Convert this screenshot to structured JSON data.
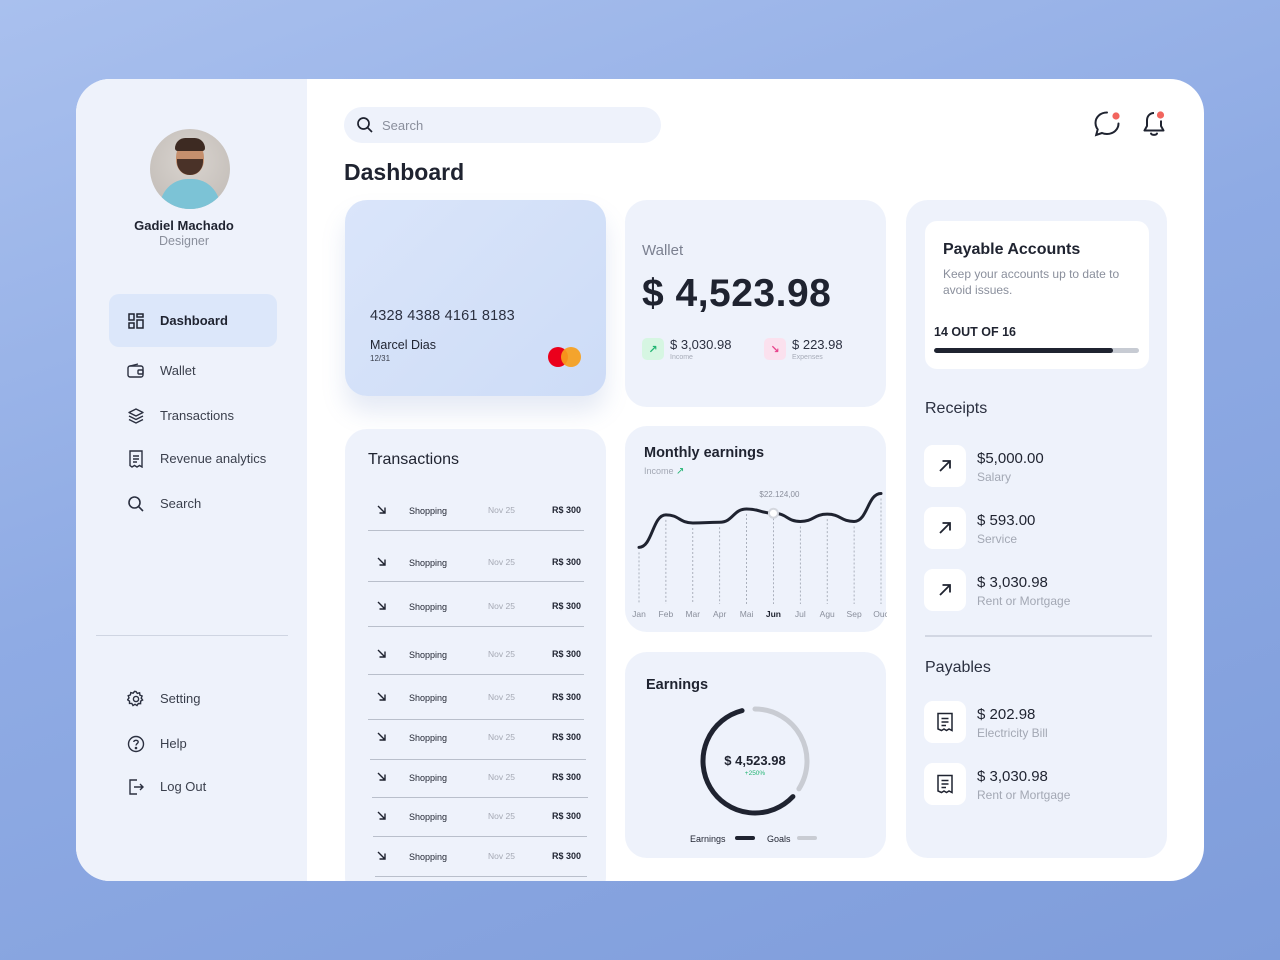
{
  "user": {
    "name": "Gadiel Machado",
    "role": "Designer"
  },
  "nav": {
    "items": [
      {
        "label": "Dashboard",
        "icon": "grid-icon",
        "active": true
      },
      {
        "label": "Wallet",
        "icon": "wallet-icon"
      },
      {
        "label": "Transactions",
        "icon": "layers-icon"
      },
      {
        "label": "Revenue analytics",
        "icon": "receipt-icon"
      },
      {
        "label": "Search",
        "icon": "search-icon"
      }
    ],
    "bottom": [
      {
        "label": "Setting",
        "icon": "gear-icon"
      },
      {
        "label": "Help",
        "icon": "help-icon"
      },
      {
        "label": "Log Out",
        "icon": "logout-icon"
      }
    ]
  },
  "search": {
    "placeholder": "Search"
  },
  "header": {
    "title": "Dashboard",
    "message_icon": "chat-icon",
    "notification_icon": "bell-icon",
    "badge_color": "#f2655e"
  },
  "card": {
    "number": "4328 4388 4161 8183",
    "holder": "Marcel Dias",
    "expiry": "12/31",
    "brand_icon": "mastercard-logo"
  },
  "wallet": {
    "label": "Wallet",
    "amount": "$ 4,523.98",
    "income": {
      "amount": "$ 3,030.98",
      "label": "Income"
    },
    "expenses": {
      "amount": "$ 223.98",
      "label": "Expenses"
    }
  },
  "payable_accounts": {
    "title": "Payable Accounts",
    "description": "Keep your accounts up to date to avoid issues.",
    "count_text": "14 OUT OF 16",
    "progress": 0.875
  },
  "receipts": {
    "title": "Receipts",
    "items": [
      {
        "amount": "$5,000.00",
        "label": "Salary"
      },
      {
        "amount": "$ 593.00",
        "label": "Service"
      },
      {
        "amount": "$ 3,030.98",
        "label": "Rent or Mortgage"
      }
    ]
  },
  "payables": {
    "title": "Payables",
    "items": [
      {
        "amount": "$ 202.98",
        "label": "Electricity Bill"
      },
      {
        "amount": "$ 3,030.98",
        "label": "Rent or Mortgage"
      }
    ]
  },
  "transactions": {
    "title": "Transactions",
    "rows": [
      {
        "category": "Shopping",
        "date": "Nov 25",
        "amount": "R$ 300"
      },
      {
        "category": "Shopping",
        "date": "Nov 25",
        "amount": "R$ 300"
      },
      {
        "category": "Shopping",
        "date": "Nov 25",
        "amount": "R$ 300"
      },
      {
        "category": "Shopping",
        "date": "Nov 25",
        "amount": "R$ 300"
      },
      {
        "category": "Shopping",
        "date": "Nov 25",
        "amount": "R$ 300"
      },
      {
        "category": "Shopping",
        "date": "Nov 25",
        "amount": "R$ 300"
      },
      {
        "category": "Shopping",
        "date": "Nov 25",
        "amount": "R$ 300"
      },
      {
        "category": "Shopping",
        "date": "Nov 25",
        "amount": "R$ 300"
      },
      {
        "category": "Shopping",
        "date": "Nov 25",
        "amount": "R$ 300"
      }
    ]
  },
  "monthly_earnings": {
    "title": "Monthly earnings",
    "subtitle": "Income"
  },
  "earnings": {
    "title": "Earnings",
    "center_amount": "$ 4,523.98",
    "center_change": "+250%",
    "legend": [
      {
        "label": "Earnings"
      },
      {
        "label": "Goals"
      }
    ]
  },
  "colors": {
    "accent": "#1f2330",
    "panel": "#eef2fb",
    "active_nav": "#dce7fa",
    "income": "#22b573",
    "expense": "#e8448c"
  },
  "chart_data": [
    {
      "type": "line",
      "title": "Monthly earnings",
      "categories": [
        "Jan",
        "Feb",
        "Mar",
        "Apr",
        "Mai",
        "Jun",
        "Jul",
        "Agu",
        "Sep",
        "Ouc"
      ],
      "values": [
        17500,
        21900,
        20800,
        20900,
        22700,
        22124,
        21000,
        22000,
        21000,
        24800
      ],
      "highlight": {
        "category": "Jun",
        "label": "$22.124,00"
      },
      "grid": false
    },
    {
      "type": "pie",
      "title": "Earnings",
      "series": [
        {
          "name": "Earnings",
          "values": [
            0.64
          ]
        },
        {
          "name": "Goals",
          "values": [
            0.36
          ]
        }
      ]
    }
  ]
}
